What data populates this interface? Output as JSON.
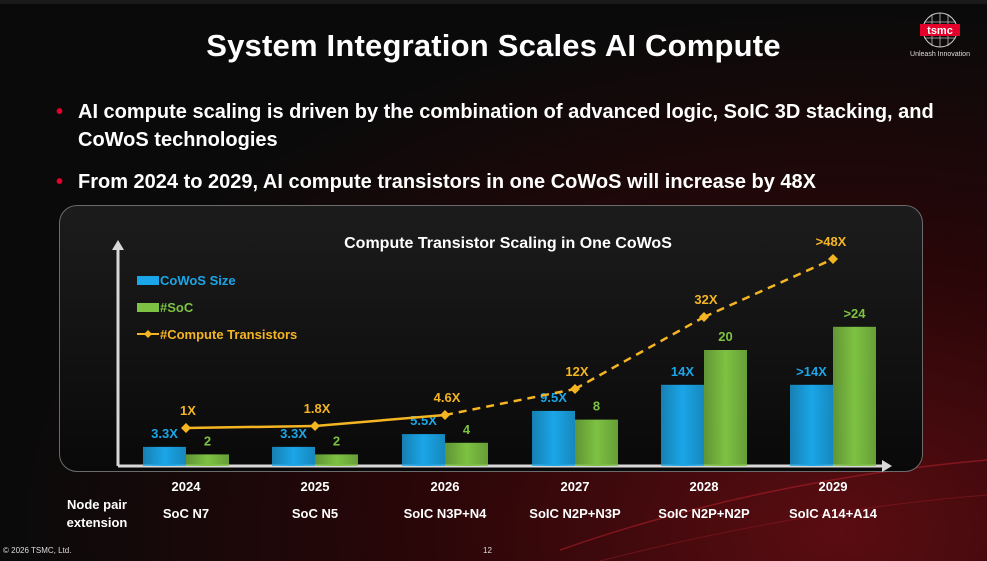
{
  "slide": {
    "title": "System Integration Scales AI Compute",
    "logo": {
      "brand": "tsmc",
      "tagline": "Unleash Innovation"
    },
    "bullets": [
      "AI compute scaling is driven by the combination of advanced logic, SoIC 3D stacking, and CoWoS technologies",
      "From 2024 to 2029, AI compute transistors in one CoWoS will increase by 48X"
    ],
    "footer": {
      "copyright": "© 2026 TSMC, Ltd.",
      "page": "12"
    },
    "row_label": "Node pair extension",
    "node_pairs": [
      "SoC N7",
      "SoC N5",
      "SoIC N3P+N4",
      "SoIC N2P+N3P",
      "SoIC N2P+N2P",
      "SoIC A14+A14"
    ]
  },
  "colors": {
    "cowos": "#1aa6e8",
    "soc": "#7dc242",
    "transistors": "#f5b523",
    "accent_red": "#e4002b"
  },
  "chart_data": {
    "type": "bar",
    "title": "Compute Transistor Scaling in One CoWoS",
    "categories": [
      "2024",
      "2025",
      "2026",
      "2027",
      "2028",
      "2029"
    ],
    "series": [
      {
        "name": "CoWoS Size",
        "values": [
          3.3,
          3.3,
          5.5,
          9.5,
          14,
          14
        ],
        "labels": [
          "3.3X",
          "3.3X",
          "5.5X",
          "9.5X",
          "14X",
          ">14X"
        ]
      },
      {
        "name": "#SoC",
        "values": [
          2,
          2,
          4,
          8,
          20,
          24
        ],
        "labels": [
          "2",
          "2",
          "4",
          "8",
          "20",
          ">24"
        ]
      },
      {
        "name": "#Compute Transistors",
        "type": "line",
        "values": [
          1,
          1.8,
          4.6,
          12,
          32,
          48
        ],
        "labels": [
          "1X",
          "1.8X",
          "4.6X",
          "12X",
          "32X",
          ">48X"
        ],
        "dashed_from_index": 2
      }
    ],
    "legend": "top-left",
    "grid": false
  }
}
